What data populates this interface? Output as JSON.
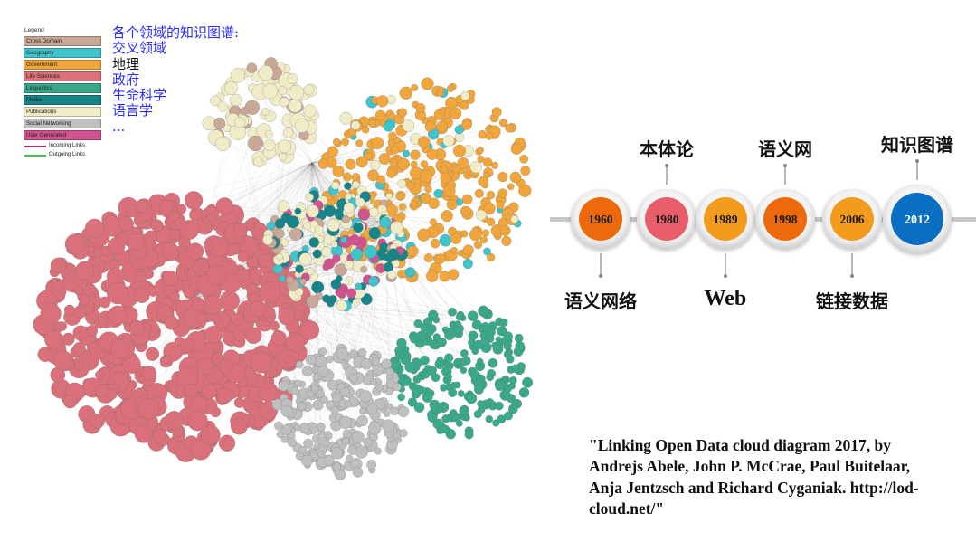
{
  "legend": {
    "title": "Legend",
    "items": [
      {
        "label": "Cross Domain",
        "color": "#c9a897"
      },
      {
        "label": "Geography",
        "color": "#3fc4cc"
      },
      {
        "label": "Government",
        "color": "#f0a63c"
      },
      {
        "label": "Life Sciences",
        "color": "#d9707a"
      },
      {
        "label": "Linguistics",
        "color": "#3aa88b"
      },
      {
        "label": "Media",
        "color": "#17848a"
      },
      {
        "label": "Publications",
        "color": "#f0ecc8"
      },
      {
        "label": "Social Networking",
        "color": "#bfbfbf"
      },
      {
        "label": "User Generated",
        "color": "#d0528e"
      }
    ],
    "links": [
      {
        "label": "Incoming Links",
        "color": "#b7325a"
      },
      {
        "label": "Outgoing Links",
        "color": "#3dcb4a"
      }
    ]
  },
  "domain_list": {
    "heading": "各个领域的知识图谱:",
    "items": [
      "交叉领域",
      "地理",
      "政府",
      "生命科学",
      "语言学"
    ],
    "ellipsis": "..."
  },
  "timeline": {
    "milestones": [
      {
        "year": "1960",
        "color": "#ec6a0c",
        "label": "语义网络",
        "label_side": "below"
      },
      {
        "year": "1980",
        "color": "#e75d6a",
        "label": "本体论",
        "label_side": "above"
      },
      {
        "year": "1989",
        "color": "#f29b1d",
        "label": "Web",
        "label_side": "below"
      },
      {
        "year": "1998",
        "color": "#ec6a0c",
        "label": "语义网",
        "label_side": "above"
      },
      {
        "year": "2006",
        "color": "#f29b1d",
        "label": "链接数据",
        "label_side": "below"
      },
      {
        "year": "2012",
        "color": "#0a6fc2",
        "label": "知识图谱",
        "label_side": "above"
      }
    ]
  },
  "citation": "\"Linking Open Data cloud diagram 2017, by Andrejs Abele, John P. McCrae, Paul Buitelaar, Anja Jentzsch and Richard Cyganiak. http://lod-cloud.net/\""
}
